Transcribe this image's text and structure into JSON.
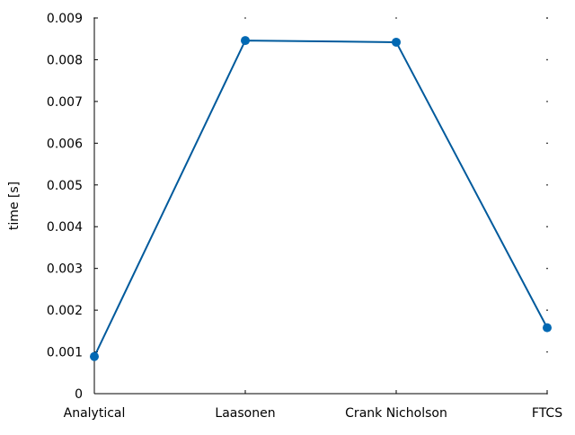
{
  "chart_data": {
    "type": "line",
    "title": "",
    "xlabel": "",
    "ylabel": "time [s]",
    "categories": [
      "Analytical",
      "Laasonen",
      "Crank Nicholson",
      "FTCS"
    ],
    "series": [
      {
        "values": [
          0.00089,
          0.00846,
          0.00842,
          0.00158
        ]
      }
    ],
    "ylim": [
      0,
      0.009
    ],
    "yticks": [
      "0",
      "0.001",
      "0.002",
      "0.003",
      "0.004",
      "0.005",
      "0.006",
      "0.007",
      "0.008",
      "0.009"
    ],
    "grid": false,
    "legend": "none",
    "line_color": "#005a9c",
    "marker_color": "#0068b3"
  }
}
